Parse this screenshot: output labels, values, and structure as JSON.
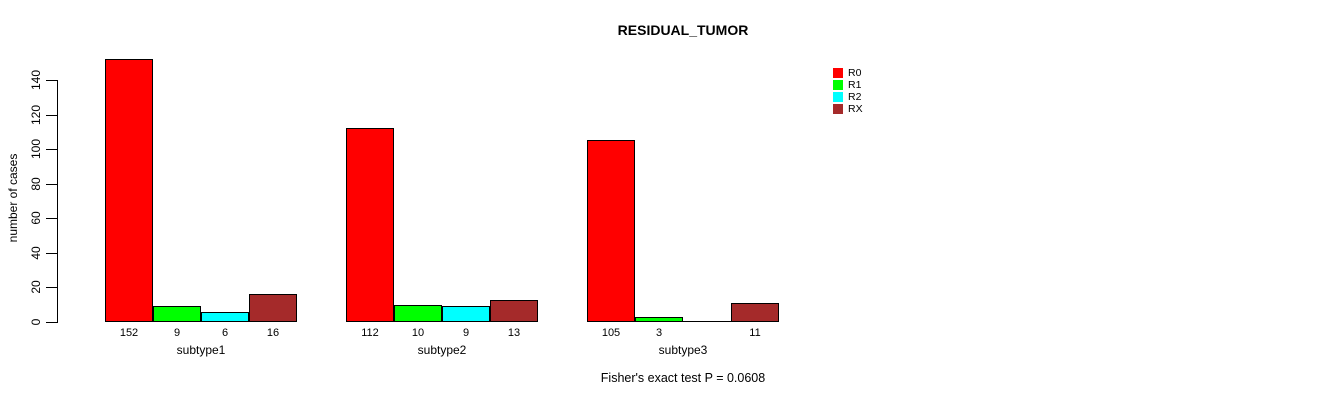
{
  "chart_data": {
    "type": "bar",
    "title": "RESIDUAL_TUMOR",
    "ylabel": "number of cases",
    "xlabel": "",
    "categories": [
      "subtype1",
      "subtype2",
      "subtype3"
    ],
    "series": [
      {
        "name": "R0",
        "color": "#ff0000",
        "values": [
          152,
          112,
          105
        ]
      },
      {
        "name": "R1",
        "color": "#00ff00",
        "values": [
          9,
          10,
          3
        ]
      },
      {
        "name": "R2",
        "color": "#00ffff",
        "values": [
          6,
          9,
          0
        ]
      },
      {
        "name": "RX",
        "color": "#a52a2a",
        "values": [
          16,
          13,
          11
        ]
      }
    ],
    "yticks": [
      0,
      20,
      40,
      60,
      80,
      100,
      120,
      140
    ],
    "ylim": [
      0,
      152
    ],
    "grid": false,
    "legend_position": "top-right",
    "bar_value_labels_shown": true,
    "zero_value_label_hidden": true,
    "annotation": "Fisher's exact test P = 0.0608",
    "bar_border_color": "#000000",
    "axis_color": "#000000",
    "background_color": "#ffffff"
  }
}
